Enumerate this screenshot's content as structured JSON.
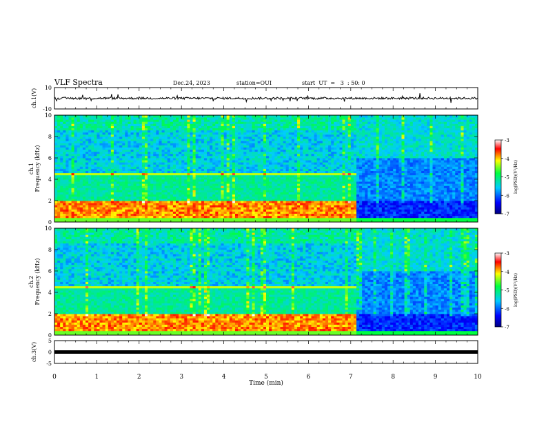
{
  "header": {
    "title": "VLF Spectra",
    "date": "Dec.24, 2023",
    "station": "station=OUI",
    "start": "start  UT  =   3  : 50: 0"
  },
  "chart_data": [
    {
      "type": "line",
      "name": "ch1-waveform",
      "ylabel": "ch.1(V)",
      "ylim": [
        -10,
        10
      ],
      "yticks": [
        "10",
        "-10"
      ],
      "xlim": [
        0,
        10
      ],
      "baseline": 0,
      "noise_amplitude": 2,
      "color": "#000000"
    },
    {
      "type": "heatmap",
      "name": "ch1-spectrogram",
      "ylabel": "ch.1\nFrequency (kHz)",
      "ylabel_line1": "ch.1",
      "ylabel_line2": "Frequency (kHz)",
      "ylim": [
        0,
        10
      ],
      "yticks": [
        "0",
        "2",
        "4",
        "6",
        "8",
        "10"
      ],
      "xlim": [
        0,
        10
      ],
      "transition_time_min": 7.1,
      "colorbar": {
        "label": "log(PSD)(V²/Hz)",
        "range": [
          -7,
          -3
        ],
        "ticks": [
          "-3",
          "-4",
          "-5",
          "-6",
          "-7"
        ]
      }
    },
    {
      "type": "heatmap",
      "name": "ch2-spectrogram",
      "ylabel_line1": "ch.2",
      "ylabel_line2": "Frequency (kHz)",
      "ylim": [
        0,
        10
      ],
      "yticks": [
        "0",
        "2",
        "4",
        "6",
        "8",
        "10"
      ],
      "xlim": [
        0,
        10
      ],
      "transition_time_min": 7.1,
      "colorbar": {
        "label": "log(PSD)(V²/Hz)",
        "range": [
          -7,
          -3
        ],
        "ticks": [
          "-3",
          "-4",
          "-5",
          "-6",
          "-7"
        ]
      }
    },
    {
      "type": "line",
      "name": "ch3-waveform",
      "ylabel": "ch.3(V)",
      "ylim": [
        -5,
        5
      ],
      "yticks": [
        "5",
        "0",
        "-5"
      ],
      "xlim": [
        0,
        10
      ],
      "baseline": 0,
      "color": "#000000"
    }
  ],
  "xaxis": {
    "label": "Time (min)",
    "ticks": [
      "0",
      "1",
      "2",
      "3",
      "4",
      "5",
      "6",
      "7",
      "8",
      "9",
      "10"
    ]
  }
}
